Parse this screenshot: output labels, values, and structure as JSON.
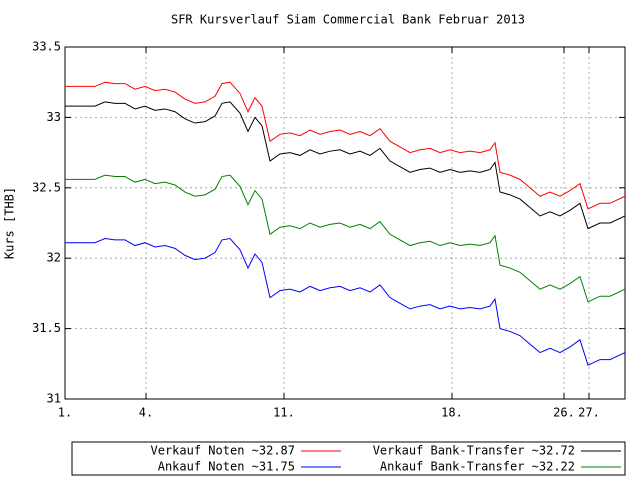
{
  "chart_data": {
    "type": "line",
    "title": "SFR Kursverlauf Siam Commercial Bank Februar 2013",
    "ylabel": "Kurs [THB]",
    "x": [
      0,
      10,
      20,
      30,
      40,
      50,
      60,
      70,
      80,
      90,
      100,
      110,
      120,
      130,
      140,
      150,
      157,
      165,
      175,
      183,
      190,
      197,
      205,
      215,
      225,
      235,
      245,
      255,
      265,
      275,
      285,
      295,
      305,
      315,
      325,
      335,
      345,
      355,
      365,
      375,
      385,
      395,
      405,
      415,
      425,
      430,
      435,
      445,
      455,
      465,
      475,
      485,
      495,
      505,
      515,
      523,
      535,
      545,
      560
    ],
    "xlim": [
      0,
      560
    ],
    "xticks": [
      {
        "value": 0,
        "label": "1."
      },
      {
        "value": 81,
        "label": "4."
      },
      {
        "value": 219,
        "label": "11."
      },
      {
        "value": 387,
        "label": "18."
      },
      {
        "value": 499,
        "label": "26."
      },
      {
        "value": 524,
        "label": "27."
      }
    ],
    "ylim": [
      31,
      33.5
    ],
    "yticks": [
      31,
      31.5,
      32,
      32.5,
      33,
      33.5
    ],
    "grid": true,
    "series": [
      {
        "name": "Verkauf Noten ~32.87",
        "color": "#ff0000",
        "values": [
          33.22,
          33.22,
          33.22,
          33.22,
          33.25,
          33.24,
          33.24,
          33.2,
          33.22,
          33.19,
          33.2,
          33.18,
          33.13,
          33.1,
          33.11,
          33.15,
          33.24,
          33.25,
          33.17,
          33.04,
          33.14,
          33.08,
          32.83,
          32.88,
          32.89,
          32.87,
          32.91,
          32.88,
          32.9,
          32.91,
          32.88,
          32.9,
          32.87,
          32.92,
          32.83,
          32.79,
          32.75,
          32.77,
          32.78,
          32.75,
          32.77,
          32.75,
          32.76,
          32.75,
          32.77,
          32.82,
          32.61,
          32.59,
          32.56,
          32.5,
          32.44,
          32.47,
          32.44,
          32.48,
          32.53,
          32.35,
          32.39,
          32.39,
          32.44
        ]
      },
      {
        "name": "Verkauf Bank-Transfer ~32.72",
        "color": "#000000",
        "values": [
          33.08,
          33.08,
          33.08,
          33.08,
          33.11,
          33.1,
          33.1,
          33.06,
          33.08,
          33.05,
          33.06,
          33.04,
          32.99,
          32.96,
          32.97,
          33.01,
          33.1,
          33.11,
          33.03,
          32.9,
          33.0,
          32.94,
          32.69,
          32.74,
          32.75,
          32.73,
          32.77,
          32.74,
          32.76,
          32.77,
          32.74,
          32.76,
          32.73,
          32.78,
          32.69,
          32.65,
          32.61,
          32.63,
          32.64,
          32.61,
          32.63,
          32.61,
          32.62,
          32.61,
          32.63,
          32.68,
          32.47,
          32.45,
          32.42,
          32.36,
          32.3,
          32.33,
          32.3,
          32.34,
          32.39,
          32.21,
          32.25,
          32.25,
          32.3
        ]
      },
      {
        "name": "Ankauf Noten ~31.75",
        "color": "#0000ff",
        "values": [
          32.11,
          32.11,
          32.11,
          32.11,
          32.14,
          32.13,
          32.13,
          32.09,
          32.11,
          32.08,
          32.09,
          32.07,
          32.02,
          31.99,
          32.0,
          32.04,
          32.13,
          32.14,
          32.06,
          31.93,
          32.03,
          31.97,
          31.72,
          31.77,
          31.78,
          31.76,
          31.8,
          31.77,
          31.79,
          31.8,
          31.77,
          31.79,
          31.76,
          31.81,
          31.72,
          31.68,
          31.64,
          31.66,
          31.67,
          31.64,
          31.66,
          31.64,
          31.65,
          31.64,
          31.66,
          31.71,
          31.5,
          31.48,
          31.45,
          31.39,
          31.33,
          31.36,
          31.33,
          31.37,
          31.42,
          31.24,
          31.28,
          31.28,
          31.33
        ]
      },
      {
        "name": "Ankauf Bank-Transfer ~32.22",
        "color": "#008000",
        "values": [
          32.56,
          32.56,
          32.56,
          32.56,
          32.59,
          32.58,
          32.58,
          32.54,
          32.56,
          32.53,
          32.54,
          32.52,
          32.47,
          32.44,
          32.45,
          32.49,
          32.58,
          32.59,
          32.51,
          32.38,
          32.48,
          32.42,
          32.17,
          32.22,
          32.23,
          32.21,
          32.25,
          32.22,
          32.24,
          32.25,
          32.22,
          32.24,
          32.21,
          32.26,
          32.17,
          32.13,
          32.09,
          32.11,
          32.12,
          32.09,
          32.11,
          32.09,
          32.1,
          32.09,
          32.11,
          32.16,
          31.95,
          31.93,
          31.9,
          31.84,
          31.78,
          31.81,
          31.78,
          31.82,
          31.87,
          31.69,
          31.73,
          31.73,
          31.78
        ]
      }
    ]
  }
}
